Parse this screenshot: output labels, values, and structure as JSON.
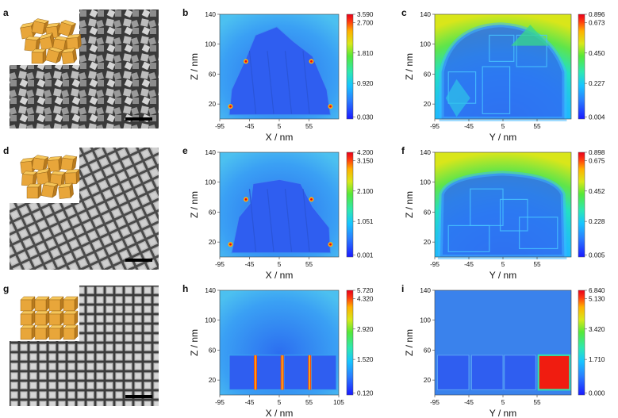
{
  "colors": {
    "bg_blue": "#3d7fe6",
    "cube_blue": "#2f5ef0",
    "colorbar": [
      "#1a1aff",
      "#2a7fff",
      "#18c4ff",
      "#2ee8b0",
      "#55e83a",
      "#d8e81a",
      "#ffb000",
      "#ff3a10",
      "#e8001c"
    ]
  },
  "rows": [
    {
      "sem": {
        "label": "a",
        "type": "disordered-sem"
      },
      "xz": {
        "label": "b",
        "xlabel": "X / nm",
        "ylabel": "Z / nm",
        "xticks": [
          "-95",
          "-45",
          "5",
          "55"
        ],
        "yticks": [
          "140",
          "100",
          "60",
          "20"
        ],
        "cbar": [
          "3.590",
          "2.700",
          "1.810",
          "0.920",
          "0.030"
        ]
      },
      "yz": {
        "label": "c",
        "xlabel": "Y / nm",
        "ylabel": "Z / nm",
        "xticks": [
          "-95",
          "-45",
          "5",
          "55"
        ],
        "yticks": [
          "140",
          "100",
          "60",
          "20"
        ],
        "cbar": [
          "0.896",
          "0.673",
          "0.450",
          "0.227",
          "0.004"
        ]
      }
    },
    {
      "sem": {
        "label": "d",
        "type": "semi-ordered-sem"
      },
      "xz": {
        "label": "e",
        "xlabel": "X / nm",
        "ylabel": "Z / nm",
        "xticks": [
          "-95",
          "-45",
          "5",
          "55"
        ],
        "yticks": [
          "140",
          "100",
          "60",
          "20"
        ],
        "cbar": [
          "4.200",
          "3.150",
          "2.100",
          "1.051",
          "0.001"
        ]
      },
      "yz": {
        "label": "f",
        "xlabel": "Y / nm",
        "ylabel": "Z / nm",
        "xticks": [
          "-95",
          "-45",
          "5",
          "55"
        ],
        "yticks": [
          "140",
          "100",
          "60",
          "20"
        ],
        "cbar": [
          "0.898",
          "0.675",
          "0.452",
          "0.228",
          "0.005"
        ]
      }
    },
    {
      "sem": {
        "label": "g",
        "type": "ordered-sem"
      },
      "xz": {
        "label": "h",
        "xlabel": "X / nm",
        "ylabel": "Z / nm",
        "xticks": [
          "-95",
          "-45",
          "5",
          "55",
          "105"
        ],
        "yticks": [
          "140",
          "100",
          "60",
          "20"
        ],
        "cbar": [
          "5.720",
          "4.320",
          "2.920",
          "1.520",
          "0.120"
        ]
      },
      "yz": {
        "label": "i",
        "xlabel": "Y / nm",
        "ylabel": "Z / nm",
        "xticks": [
          "-95",
          "-45",
          "5",
          "55"
        ],
        "yticks": [
          "140",
          "100",
          "60",
          "20"
        ],
        "cbar": [
          "6.840",
          "5.130",
          "3.420",
          "1.710",
          "0.000"
        ]
      }
    }
  ]
}
